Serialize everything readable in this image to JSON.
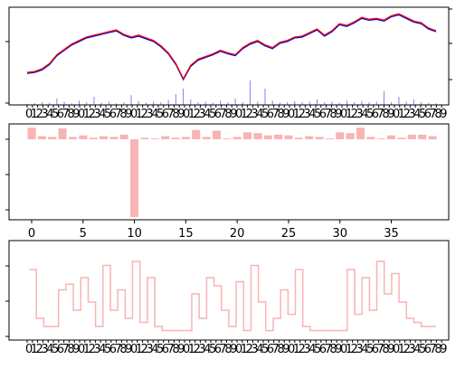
{
  "chart_data": [
    {
      "type": "line",
      "panel": "price",
      "title": "",
      "xlabel": "",
      "ylabel": "",
      "grid": false,
      "series": [
        {
          "values": [
            0.3,
            0.31,
            0.34,
            0.4,
            0.5,
            0.56,
            0.62,
            0.66,
            0.7,
            0.72,
            0.74,
            0.76,
            0.78,
            0.73,
            0.7,
            0.72,
            0.69,
            0.66,
            0.6,
            0.52,
            0.4,
            0.23,
            0.38,
            0.45,
            0.48,
            0.51,
            0.55,
            0.52,
            0.5,
            0.58,
            0.63,
            0.66,
            0.61,
            0.58,
            0.64,
            0.66,
            0.7,
            0.71,
            0.75,
            0.79,
            0.72,
            0.77,
            0.85,
            0.83,
            0.87,
            0.92,
            0.9,
            0.91,
            0.89,
            0.94,
            0.96,
            0.92,
            0.88,
            0.86,
            0.8,
            0.77
          ],
          "color": "#0000cc"
        },
        {
          "values": [
            0.3,
            0.31,
            0.34,
            0.4,
            0.5,
            0.56,
            0.62,
            0.66,
            0.7,
            0.72,
            0.74,
            0.76,
            0.78,
            0.73,
            0.7,
            0.72,
            0.69,
            0.66,
            0.6,
            0.52,
            0.4,
            0.23,
            0.38,
            0.45,
            0.48,
            0.51,
            0.55,
            0.52,
            0.5,
            0.58,
            0.63,
            0.66,
            0.61,
            0.58,
            0.64,
            0.66,
            0.7,
            0.71,
            0.75,
            0.79,
            0.72,
            0.77,
            0.85,
            0.83,
            0.87,
            0.92,
            0.9,
            0.91,
            0.89,
            0.94,
            0.96,
            0.92,
            0.88,
            0.86,
            0.8,
            0.77
          ],
          "color": "#ff0000"
        }
      ],
      "volume": [
        0.02,
        0.03,
        0.05,
        0.04,
        0.12,
        0.06,
        0.03,
        0.08,
        0.05,
        0.15,
        0.04,
        0.06,
        0.03,
        0.05,
        0.18,
        0.07,
        0.04,
        0.06,
        0.05,
        0.09,
        0.2,
        0.3,
        0.1,
        0.05,
        0.06,
        0.04,
        0.08,
        0.05,
        0.12,
        0.05,
        0.45,
        0.06,
        0.3,
        0.08,
        0.04,
        0.05,
        0.07,
        0.05,
        0.06,
        0.1,
        0.05,
        0.06,
        0.04,
        0.08,
        0.05,
        0.07,
        0.05,
        0.06,
        0.25,
        0.05,
        0.15,
        0.06,
        0.1,
        0.05,
        0.04,
        0.03
      ],
      "volume_color": "#8080ff"
    },
    {
      "type": "bar",
      "panel": "bars",
      "title": "",
      "xlabel": "",
      "ylabel": "",
      "categories": [
        0,
        1,
        2,
        3,
        4,
        5,
        6,
        7,
        8,
        9,
        10,
        11,
        12,
        13,
        14,
        15,
        16,
        17,
        18,
        19,
        20,
        21,
        22,
        23,
        24,
        25,
        26,
        27,
        28,
        29,
        30,
        31,
        32,
        33,
        34,
        35,
        36,
        37,
        38,
        39
      ],
      "values": [
        0.15,
        0.04,
        0.03,
        0.14,
        0.03,
        0.05,
        0.02,
        0.04,
        0.03,
        0.06,
        -1.0,
        0.02,
        0.01,
        0.04,
        0.02,
        0.03,
        0.12,
        0.03,
        0.11,
        0.01,
        0.03,
        0.09,
        0.08,
        0.05,
        0.06,
        0.05,
        0.02,
        0.04,
        0.03,
        0.01,
        0.09,
        0.08,
        0.15,
        0.03,
        0.01,
        0.05,
        0.02,
        0.06,
        0.06,
        0.04
      ],
      "xticks": [
        "0",
        "5",
        "10",
        "15",
        "20",
        "25",
        "30",
        "35"
      ],
      "color": "#f8b4b4"
    },
    {
      "type": "line",
      "panel": "step",
      "title": "",
      "xlabel": "",
      "ylabel": "",
      "values": [
        0.8,
        0.2,
        0.1,
        0.1,
        0.55,
        0.62,
        0.3,
        0.7,
        0.4,
        0.1,
        0.85,
        0.3,
        0.55,
        0.2,
        0.9,
        0.15,
        0.7,
        0.1,
        0.05,
        0.05,
        0.05,
        0.05,
        0.5,
        0.2,
        0.7,
        0.6,
        0.3,
        0.1,
        0.65,
        0.05,
        0.85,
        0.4,
        0.05,
        0.2,
        0.55,
        0.25,
        0.8,
        0.1,
        0.05,
        0.05,
        0.05,
        0.05,
        0.05,
        0.8,
        0.25,
        0.7,
        0.3,
        0.9,
        0.5,
        0.75,
        0.4,
        0.2,
        0.15,
        0.1,
        0.1,
        0.1
      ],
      "color": "#f8b4b4"
    }
  ]
}
